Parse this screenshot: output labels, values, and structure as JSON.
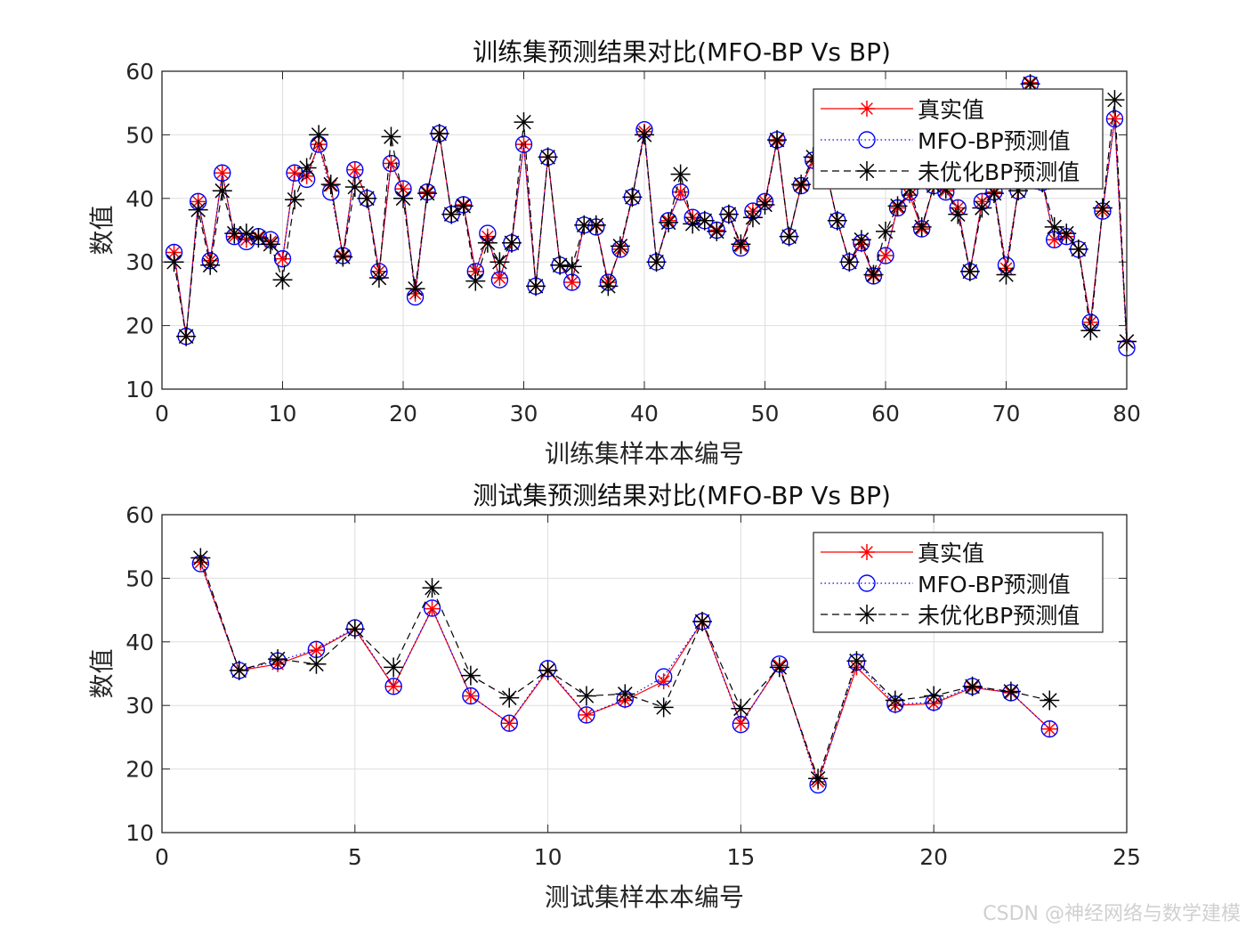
{
  "chart_data": [
    {
      "type": "line",
      "title": "训练集预测结果对比(MFO-BP Vs BP)",
      "xlabel": "训练集样本本编号",
      "ylabel": "数值",
      "xlim": [
        0,
        80
      ],
      "ylim": [
        10,
        60
      ],
      "xticks": [
        0,
        10,
        20,
        30,
        40,
        50,
        60,
        70,
        80
      ],
      "yticks": [
        10,
        20,
        30,
        40,
        50,
        60
      ],
      "grid": true,
      "legend_position": "top-right",
      "x": [
        1,
        2,
        3,
        4,
        5,
        6,
        7,
        8,
        9,
        10,
        11,
        12,
        13,
        14,
        15,
        16,
        17,
        18,
        19,
        20,
        21,
        22,
        23,
        24,
        25,
        26,
        27,
        28,
        29,
        30,
        31,
        32,
        33,
        34,
        35,
        36,
        37,
        38,
        39,
        40,
        41,
        42,
        43,
        44,
        45,
        46,
        47,
        48,
        49,
        50,
        51,
        52,
        53,
        54,
        55,
        56,
        57,
        58,
        59,
        60,
        61,
        62,
        63,
        64,
        65,
        66,
        67,
        68,
        69,
        70,
        71,
        72,
        73,
        74,
        75,
        76,
        77,
        78,
        79,
        80
      ],
      "series": [
        {
          "name": "真实值",
          "color": "#ff0000",
          "marker": "asterisk",
          "line": "solid",
          "values": [
            31.5,
            18.3,
            39.5,
            30.2,
            44,
            34,
            33.5,
            34,
            33.2,
            30.5,
            44,
            43.5,
            48.5,
            42,
            31,
            44.5,
            40,
            28.5,
            45.5,
            41.5,
            25,
            41,
            50.2,
            37.5,
            39,
            28.5,
            34,
            27.5,
            33,
            48.5,
            26.2,
            46.5,
            29.5,
            26.8,
            35.8,
            35.7,
            26.8,
            32,
            40.2,
            50.5,
            30,
            36.5,
            41,
            37,
            36.5,
            35,
            37.5,
            32.5,
            38,
            39.5,
            49,
            34,
            42,
            45.8,
            45,
            36.5,
            30,
            32.8,
            27.8,
            31,
            38.5,
            40.5,
            35.2,
            42,
            41.2,
            38.5,
            28.5,
            39.5,
            41,
            29,
            41.2,
            58.2,
            42.5,
            33.5,
            34,
            32,
            20.5,
            38,
            52.5,
            17.5
          ]
        },
        {
          "name": "MFO-BP预测值",
          "color": "#0000ff",
          "marker": "circle",
          "line": "dotted",
          "values": [
            31.5,
            18.3,
            39.5,
            30.2,
            44,
            34,
            33.2,
            34,
            33.5,
            30.5,
            44,
            43,
            48.5,
            41,
            31,
            44.5,
            40,
            28.5,
            45.5,
            41.5,
            24.5,
            41,
            50.2,
            37.5,
            39,
            28.5,
            34.5,
            27.2,
            33,
            48.5,
            26.2,
            46.5,
            29.5,
            26.8,
            35.8,
            35.5,
            26.8,
            32,
            40.2,
            50.8,
            30,
            36.5,
            41,
            37,
            36.5,
            35,
            37.5,
            32.2,
            38,
            39.5,
            49.2,
            34,
            42,
            46,
            45,
            36.5,
            30,
            33,
            27.8,
            31,
            38.5,
            41,
            35.2,
            42,
            41,
            38.5,
            28.5,
            39.5,
            41,
            29.5,
            41.2,
            58,
            42.5,
            33.5,
            34,
            32,
            20.5,
            38,
            52.5,
            16.5
          ]
        },
        {
          "name": "未优化BP预测值",
          "color": "#000000",
          "marker": "asterisk",
          "line": "dashed",
          "values": [
            30,
            18.3,
            38.2,
            29.5,
            41.2,
            34.5,
            34.5,
            33.8,
            32.8,
            27.2,
            39.8,
            44.8,
            50,
            42.2,
            30.8,
            41.8,
            40,
            27.5,
            49.7,
            40,
            25.8,
            40.8,
            50.2,
            37.5,
            38.8,
            27,
            33,
            30,
            33,
            52,
            26.2,
            46.5,
            29.5,
            29.3,
            35.8,
            35.8,
            26.2,
            32.5,
            40.2,
            50,
            30,
            36.2,
            43.8,
            36,
            36.5,
            34.8,
            37.5,
            32.8,
            37,
            39,
            49.2,
            34,
            42.2,
            46.5,
            45,
            36.5,
            30,
            33.5,
            28,
            34.8,
            38.8,
            41.5,
            35.5,
            42,
            41.5,
            37.5,
            28.5,
            38.5,
            40.8,
            28,
            41.2,
            58,
            42.5,
            35.5,
            34.5,
            32,
            19.2,
            38.5,
            55.5,
            17.5
          ]
        }
      ]
    },
    {
      "type": "line",
      "title": "测试集预测结果对比(MFO-BP Vs BP)",
      "xlabel": "测试集样本本编号",
      "ylabel": "数值",
      "xlim": [
        0,
        25
      ],
      "ylim": [
        10,
        60
      ],
      "xticks": [
        0,
        5,
        10,
        15,
        20,
        25
      ],
      "yticks": [
        10,
        20,
        30,
        40,
        50,
        60
      ],
      "grid": true,
      "legend_position": "top-right",
      "x": [
        1,
        2,
        3,
        4,
        5,
        6,
        7,
        8,
        9,
        10,
        11,
        12,
        13,
        14,
        15,
        16,
        17,
        18,
        19,
        20,
        21,
        22,
        23
      ],
      "series": [
        {
          "name": "真实值",
          "color": "#ff0000",
          "marker": "asterisk",
          "line": "solid",
          "values": [
            52.5,
            35.5,
            36.5,
            38.7,
            42,
            33,
            45.2,
            31.5,
            27.2,
            35.5,
            28.5,
            30.8,
            33.8,
            43.2,
            27.2,
            36.3,
            18,
            36,
            30,
            30.3,
            32.8,
            32,
            26.3
          ]
        },
        {
          "name": "MFO-BP预测值",
          "color": "#0000ff",
          "marker": "circle",
          "line": "dotted",
          "values": [
            52.3,
            35.5,
            37,
            38.8,
            42.2,
            33,
            45.3,
            31.5,
            27.2,
            35.8,
            28.5,
            31,
            34.5,
            43.2,
            27,
            36.5,
            17.5,
            36.8,
            30.2,
            30.5,
            33,
            32,
            26.3
          ]
        },
        {
          "name": "未优化BP预测值",
          "color": "#000000",
          "marker": "asterisk",
          "line": "dashed",
          "values": [
            53.2,
            35.5,
            37.3,
            36.5,
            42,
            36,
            48.5,
            34.7,
            31.2,
            35.5,
            31.5,
            31.8,
            29.7,
            43.2,
            29.5,
            36,
            18.5,
            37,
            30.8,
            31.5,
            33,
            32.2,
            30.8
          ]
        }
      ]
    }
  ],
  "watermark": "CSDN @神经网络与数学建模"
}
